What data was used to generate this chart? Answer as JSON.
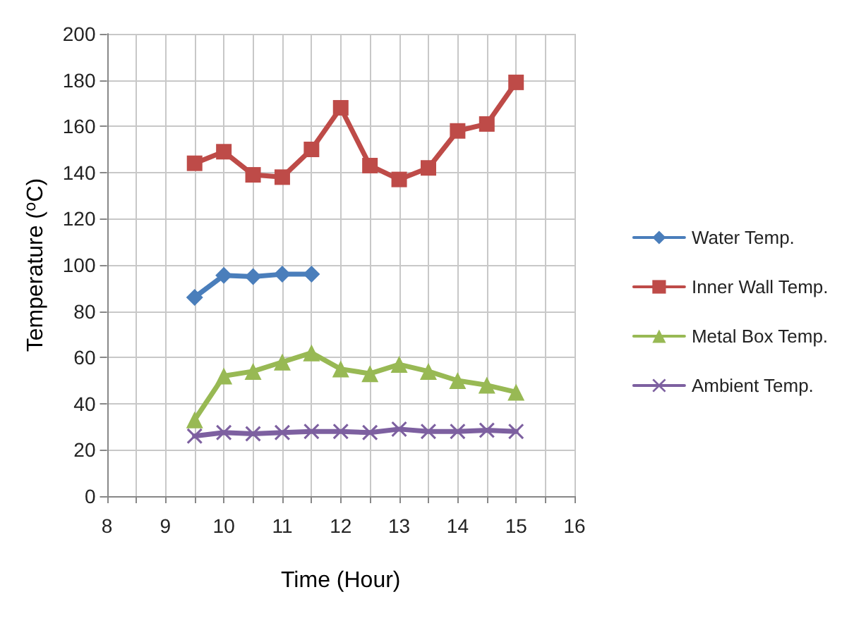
{
  "chart_data": {
    "type": "line",
    "xlabel": "Time (Hour)",
    "ylabel": "Temperature ($^{o}$C)",
    "x": [
      9.5,
      10,
      10.5,
      11,
      11.5,
      12,
      12.5,
      13,
      13.5,
      14,
      14.5,
      15
    ],
    "series": [
      {
        "name": "Water Temp.",
        "color": "#4a7ebb",
        "marker": "diamond",
        "values": [
          86,
          95.5,
          95,
          96,
          96,
          null,
          null,
          null,
          null,
          null,
          null,
          null
        ]
      },
      {
        "name": "Inner Wall Temp.",
        "color": "#be4b48",
        "marker": "square",
        "values": [
          144,
          149,
          139,
          138,
          150,
          168,
          143,
          137,
          142,
          158,
          161,
          179
        ]
      },
      {
        "name": "Metal Box Temp.",
        "color": "#98b954",
        "marker": "triangle",
        "values": [
          33,
          52,
          54,
          58,
          62,
          55,
          53,
          57,
          54,
          50,
          48,
          45
        ]
      },
      {
        "name": "Ambient Temp.",
        "color": "#7d60a0",
        "marker": "cross",
        "values": [
          26,
          27.5,
          27,
          27.5,
          28,
          28,
          27.5,
          29,
          28,
          28,
          28.5,
          28
        ]
      }
    ],
    "xlim": [
      8,
      16
    ],
    "xticks": [
      8,
      {
        "value": 8.5,
        "label": null
      },
      9,
      {
        "value": 9.5,
        "label": null
      },
      10,
      {
        "value": 10.5,
        "label": null
      },
      11,
      {
        "value": 11.5,
        "label": null
      },
      12,
      {
        "value": 12.5,
        "label": null
      },
      13,
      {
        "value": 13.5,
        "label": null
      },
      14,
      {
        "value": 14.5,
        "label": null
      },
      15,
      {
        "value": 15.5,
        "label": null
      },
      16
    ],
    "ylim": [
      0,
      200
    ],
    "yticks": [
      0,
      20,
      40,
      60,
      80,
      100,
      120,
      140,
      160,
      180,
      200
    ],
    "grid": true,
    "legend": "right",
    "line_style": "solid"
  }
}
